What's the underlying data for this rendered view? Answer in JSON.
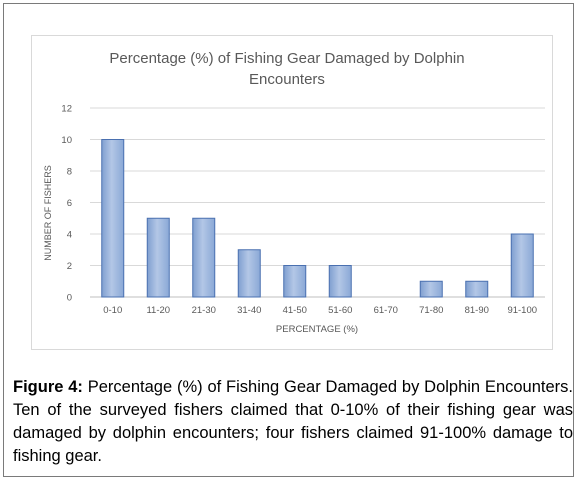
{
  "chart_data": {
    "type": "bar",
    "title": "Percentage (%) of Fishing Gear Damaged by Dolphin Encounters",
    "title_lines": [
      "Percentage (%) of Fishing Gear Damaged by Dolphin",
      "Encounters"
    ],
    "xlabel": "PERCENTAGE (%)",
    "ylabel": "NUMBER OF FISHERS",
    "categories": [
      "0-10",
      "11-20",
      "21-30",
      "31-40",
      "41-50",
      "51-60",
      "61-70",
      "71-80",
      "81-90",
      "91-100"
    ],
    "values": [
      10,
      5,
      5,
      3,
      2,
      2,
      0,
      1,
      1,
      4
    ],
    "ylim": [
      0,
      12
    ],
    "yticks": [
      "0",
      "2",
      "4",
      "6",
      "8",
      "10",
      "12"
    ],
    "grid": true,
    "colors": {
      "bar_fill": "#9db6dd",
      "bar_stroke": "#4a70b0",
      "grid": "#d9d9d9",
      "text": "#595959"
    }
  },
  "caption": {
    "label": "Figure 4:",
    "text": "Percentage (%) of Fishing Gear Damaged by Dolphin Encounters. Ten of the surveyed fishers claimed that 0-10% of their fishing gear was damaged by dolphin encounters; four fishers claimed 91-100% damage to fishing gear."
  }
}
